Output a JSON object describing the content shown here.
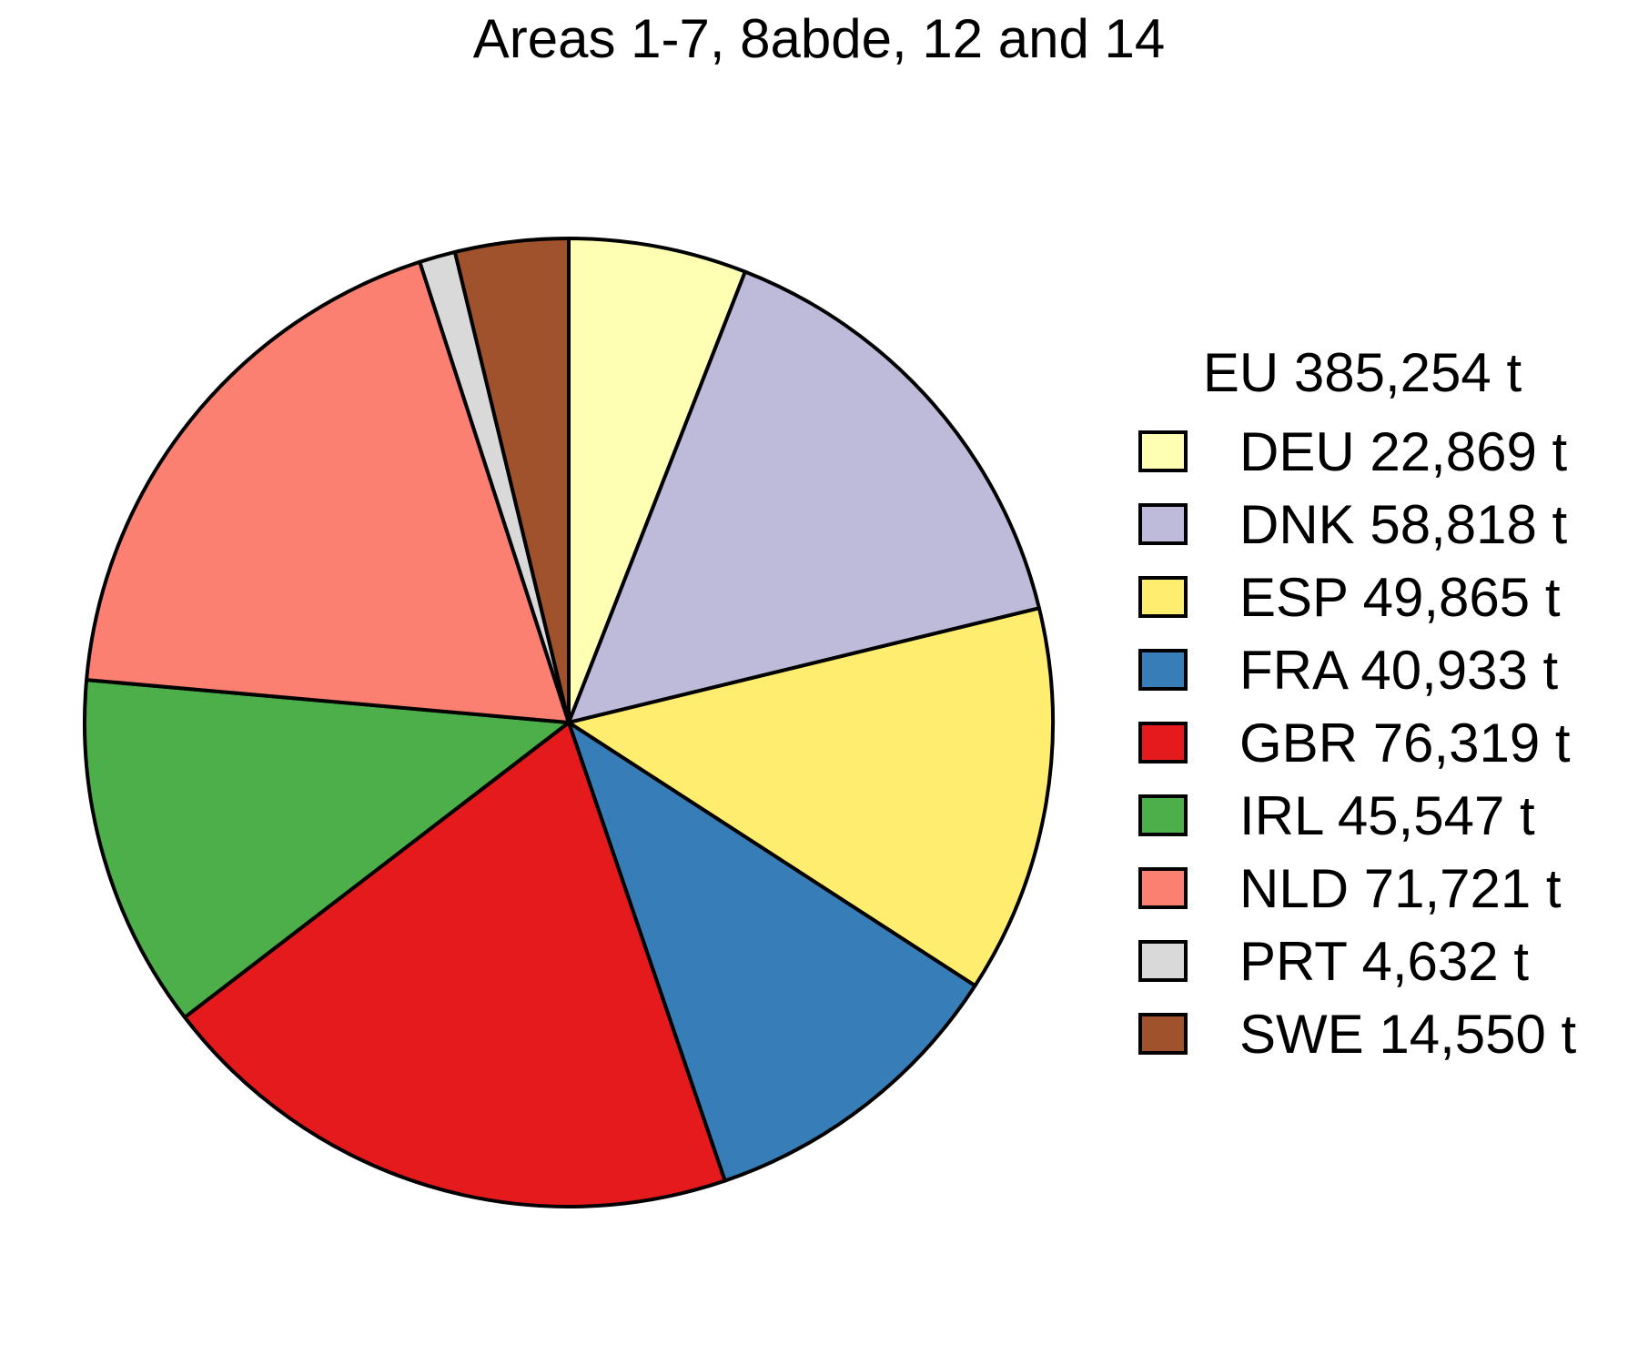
{
  "chart_data": {
    "type": "pie",
    "title": "Areas 1-7, 8abde, 12 and 14",
    "legend_title": "EU 385,254 t",
    "legend_position": "right",
    "start": "top",
    "direction": "clockwise",
    "slices": [
      {
        "name": "DEU",
        "label": "DEU 22,869 t",
        "value": 22869,
        "color": "#FFFFB3"
      },
      {
        "name": "DNK",
        "label": "DNK 58,818 t",
        "value": 58818,
        "color": "#BEBADA"
      },
      {
        "name": "ESP",
        "label": "ESP 49,865 t",
        "value": 49865,
        "color": "#FFED6F"
      },
      {
        "name": "FRA",
        "label": "FRA 40,933 t",
        "value": 40933,
        "color": "#377EB8"
      },
      {
        "name": "GBR",
        "label": "GBR 76,319 t",
        "value": 76319,
        "color": "#E41A1C"
      },
      {
        "name": "IRL",
        "label": "IRL 45,547 t",
        "value": 45547,
        "color": "#4DAF4A"
      },
      {
        "name": "NLD",
        "label": "NLD 71,721 t",
        "value": 71721,
        "color": "#FB8072"
      },
      {
        "name": "PRT",
        "label": "PRT 4,632 t",
        "value": 4632,
        "color": "#D9D9D9"
      },
      {
        "name": "SWE",
        "label": "SWE 14,550 t",
        "value": 14550,
        "color": "#A0522D"
      }
    ]
  }
}
